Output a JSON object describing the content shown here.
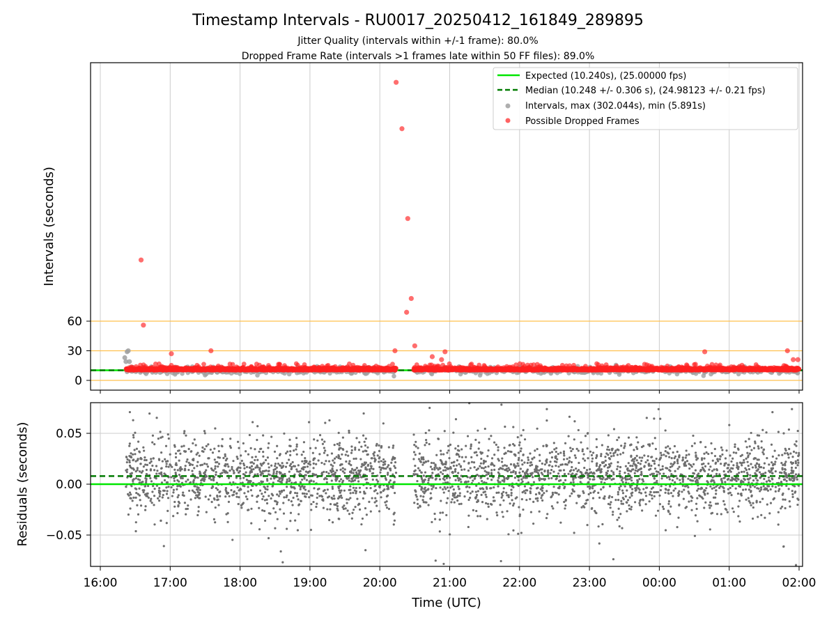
{
  "figure": {
    "title": "Timestamp Intervals - RU0017_20250412_161849_289895",
    "subtitle_lines": [
      "Jitter Quality (intervals within +/-1 frame): 80.0%",
      "Dropped Frame Rate (intervals >1 frames late within 50 FF files): 89.0%"
    ],
    "xlabel": "Time (UTC)"
  },
  "colors": {
    "expected": "#00e600",
    "median": "#007a00",
    "intervals": "#a0a0a0",
    "dropped": "#ff2020",
    "ref_lines": "#ffc04d",
    "residual_points": "#6e6e6e",
    "grid": "#cccccc"
  },
  "chart_data": [
    {
      "type": "scatter",
      "ylabel": "Intervals (seconds)",
      "xlim": [
        "16:00",
        "02:00"
      ],
      "x_tick_labels": [
        "16:00",
        "17:00",
        "18:00",
        "19:00",
        "20:00",
        "21:00",
        "22:00",
        "23:00",
        "00:00",
        "01:00",
        "02:00"
      ],
      "y_ticks": [
        0,
        30,
        60
      ],
      "ylim": [
        -10,
        320
      ],
      "grid": "vertical",
      "legend": {
        "position": "top-right",
        "entries": [
          "Expected (10.240s), (25.00000 fps)",
          "Median (10.248 +/- 0.306 s), (24.98123 +/- 0.21 fps)",
          "Intervals, max (302.044s), min (5.891s)",
          "Possible Dropped Frames"
        ]
      },
      "reference_lines": [
        0,
        30,
        60
      ],
      "expected_value": 10.24,
      "median_value": 10.248,
      "max_interval": 302.044,
      "min_interval": 5.891,
      "data_start": "16:19",
      "gap": [
        "20:14",
        "20:29"
      ],
      "data_end": "02:00",
      "dropped_frames": [
        {
          "x": "16:35",
          "y": 122
        },
        {
          "x": "16:37",
          "y": 56
        },
        {
          "x": "17:01",
          "y": 27
        },
        {
          "x": "17:35",
          "y": 30
        },
        {
          "x": "20:14",
          "y": 302
        },
        {
          "x": "20:19",
          "y": 255
        },
        {
          "x": "20:24",
          "y": 164
        },
        {
          "x": "20:27",
          "y": 83
        },
        {
          "x": "20:23",
          "y": 69
        },
        {
          "x": "20:30",
          "y": 35
        },
        {
          "x": "20:13",
          "y": 30
        },
        {
          "x": "20:56",
          "y": 29
        },
        {
          "x": "20:45",
          "y": 24
        },
        {
          "x": "20:53",
          "y": 21
        },
        {
          "x": "00:39",
          "y": 29
        },
        {
          "x": "01:50",
          "y": 30
        },
        {
          "x": "01:55",
          "y": 21
        },
        {
          "x": "01:59",
          "y": 21
        }
      ],
      "gray_outliers": [
        {
          "x": "16:21",
          "y": 23
        },
        {
          "x": "16:22",
          "y": 19
        },
        {
          "x": "16:23",
          "y": 29
        },
        {
          "x": "16:24",
          "y": 30
        },
        {
          "x": "16:25",
          "y": 19
        },
        {
          "x": "16:26",
          "y": 13
        }
      ]
    },
    {
      "type": "scatter",
      "ylabel": "Residuals (seconds)",
      "xlim": [
        "16:00",
        "02:00"
      ],
      "x_tick_labels": [
        "16:00",
        "17:00",
        "18:00",
        "19:00",
        "20:00",
        "21:00",
        "22:00",
        "23:00",
        "00:00",
        "01:00",
        "02:00"
      ],
      "y_tick_labels": [
        "0.05",
        "0.00",
        "−0.05"
      ],
      "y_ticks": [
        0.05,
        0.0,
        -0.05
      ],
      "ylim": [
        -0.08,
        0.08
      ],
      "grid": "both",
      "expected_residual": 0.0,
      "median_residual": 0.008,
      "residual_spread": 0.025
    }
  ]
}
